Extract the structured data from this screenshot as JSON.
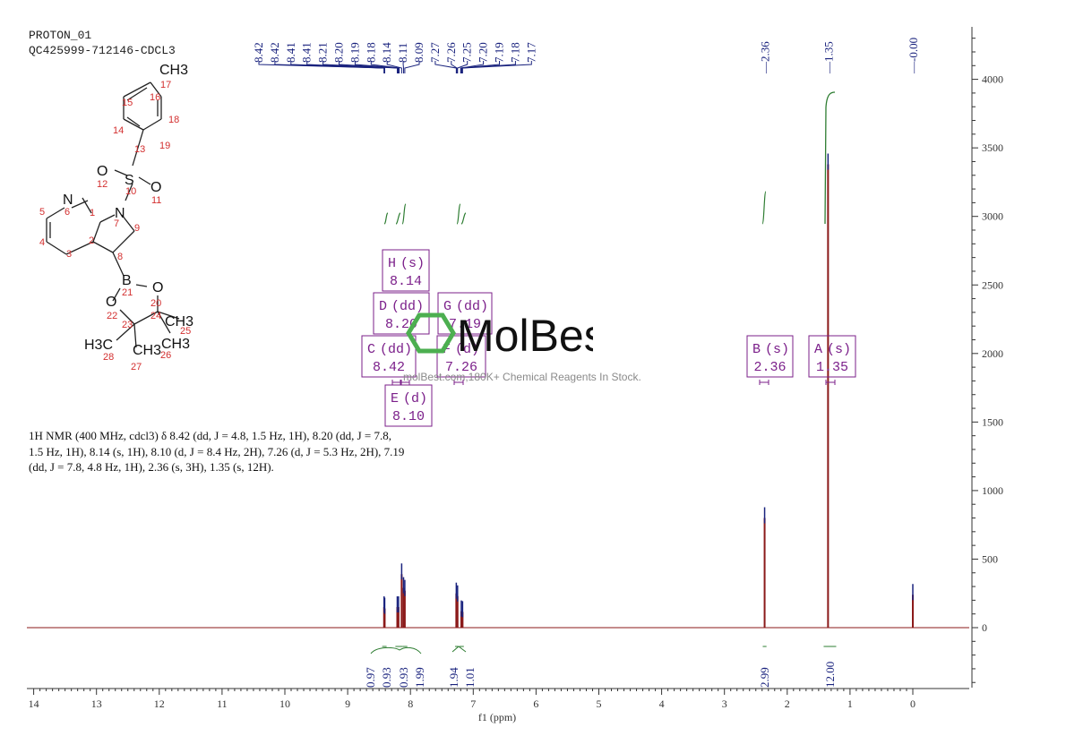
{
  "header": {
    "line1": "PROTON_01",
    "line2": "QC425999-712146-CDCL3"
  },
  "nmr_summary": "1H NMR (400 MHz, cdcl3) δ 8.42 (dd, J = 4.8, 1.5 Hz, 1H), 8.20 (dd, J = 7.8, 1.5 Hz, 1H), 8.14 (s, 1H), 8.10 (d, J = 8.4 Hz, 2H), 7.26 (d, J = 5.3 Hz, 2H), 7.19 (dd, J = 7.8, 4.8 Hz, 1H), 2.36 (s, 3H), 1.35 (s, 12H).",
  "watermark": {
    "brand": "MolBest",
    "tagline": "molBest.com,180K+ Chemical Reagents In Stock."
  },
  "colors": {
    "spectrum": "#8b1a1a",
    "peak_labels": "#1a237e",
    "integrals": "#2e7d32",
    "multiplets": "#7b1f8a",
    "structure": "#d32f2f",
    "logo": "#4caf50"
  },
  "structure": {
    "atoms": [
      "CH3",
      "17",
      "16",
      "15",
      "18",
      "14",
      "13",
      "19",
      "O",
      "S",
      "O",
      "12",
      "10",
      "11",
      "N",
      "N",
      "5",
      "6",
      "1",
      "7",
      "9",
      "4",
      "2",
      "3",
      "8",
      "B",
      "O",
      "O",
      "21",
      "20",
      "22",
      "24",
      "23",
      "CH3",
      "25",
      "H3C",
      "CH3",
      "CH3",
      "28",
      "27",
      "26"
    ]
  },
  "chart_data": {
    "type": "line",
    "title": "",
    "xlabel": "f1 (ppm)",
    "ylabel": "",
    "xlim": [
      14.2,
      -1.0
    ],
    "ylim": [
      -450,
      4400
    ],
    "x_ticks": [
      "14",
      "13",
      "12",
      "11",
      "10",
      "9",
      "8",
      "7",
      "6",
      "5",
      "4",
      "3",
      "2",
      "1",
      "0"
    ],
    "y_ticks": [
      "0",
      "500",
      "1000",
      "1500",
      "2000",
      "2500",
      "3000",
      "3500",
      "4000"
    ],
    "peaks": [
      {
        "ppm": 8.42,
        "height": 150
      },
      {
        "ppm": 8.41,
        "height": 140
      },
      {
        "ppm": 8.21,
        "height": 150
      },
      {
        "ppm": 8.19,
        "height": 150
      },
      {
        "ppm": 8.14,
        "height": 390
      },
      {
        "ppm": 8.11,
        "height": 290
      },
      {
        "ppm": 8.09,
        "height": 270
      },
      {
        "ppm": 7.27,
        "height": 250
      },
      {
        "ppm": 7.25,
        "height": 230
      },
      {
        "ppm": 7.19,
        "height": 120
      },
      {
        "ppm": 7.17,
        "height": 115
      },
      {
        "ppm": 2.36,
        "height": 800
      },
      {
        "ppm": 1.35,
        "height": 3380
      },
      {
        "ppm": 0.0,
        "height": 240
      }
    ],
    "peak_labels_left": [
      "8.42",
      "8.42",
      "8.41",
      "8.41",
      "8.21",
      "8.20",
      "8.19",
      "8.18",
      "8.14",
      "8.11",
      "8.09",
      "7.27",
      "7.26",
      "7.25",
      "7.20",
      "7.19",
      "7.18",
      "7.17"
    ],
    "peak_labels_right": [
      "2.36",
      "1.35",
      "-0.00"
    ],
    "integrals": [
      {
        "from": 8.45,
        "to": 8.38,
        "value": "0.97"
      },
      {
        "from": 8.24,
        "to": 8.16,
        "value": "0.93"
      },
      {
        "from": 8.16,
        "to": 8.12,
        "value": "0.93"
      },
      {
        "from": 8.12,
        "to": 8.05,
        "value": "1.99"
      },
      {
        "from": 7.29,
        "to": 7.23,
        "value": "1.94"
      },
      {
        "from": 7.22,
        "to": 7.15,
        "value": "1.01"
      },
      {
        "from": 2.39,
        "to": 2.33,
        "value": "2.99"
      },
      {
        "from": 1.42,
        "to": 1.22,
        "value": "12.00"
      }
    ],
    "multiplets": [
      {
        "letter": "H",
        "type": "(s)",
        "shift": "8.14"
      },
      {
        "letter": "D",
        "type": "(dd)",
        "shift": "8.20"
      },
      {
        "letter": "G",
        "type": "(dd)",
        "shift": "7.19"
      },
      {
        "letter": "C",
        "type": "(dd)",
        "shift": "8.42"
      },
      {
        "letter": "F",
        "type": "(d)",
        "shift": "7.26"
      },
      {
        "letter": "E",
        "type": "(d)",
        "shift": "8.10"
      },
      {
        "letter": "B",
        "type": "(s)",
        "shift": "2.36"
      },
      {
        "letter": "A",
        "type": "(s)",
        "shift": "1.35"
      }
    ]
  }
}
